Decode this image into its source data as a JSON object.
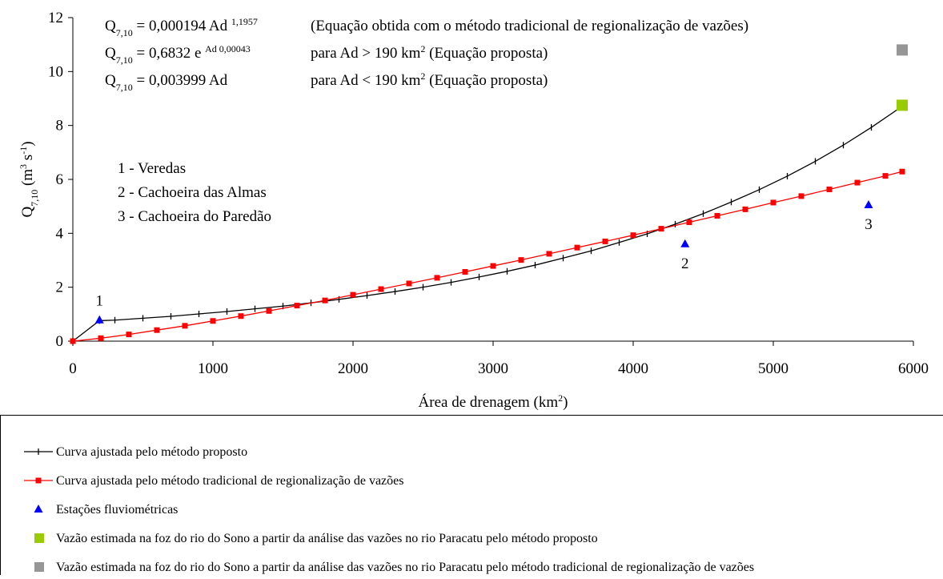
{
  "chart_data": {
    "type": "line",
    "xlabel": [
      {
        "text": "Área de drenagem (km"
      },
      {
        "text": "2",
        "sup": true
      },
      {
        "text": ")"
      }
    ],
    "ylabel": [
      {
        "text": "Q"
      },
      {
        "text": "7,10",
        "sub": true
      },
      {
        "text": " (m"
      },
      {
        "text": "3",
        "sup": true
      },
      {
        "text": " s"
      },
      {
        "text": "-1",
        "sup": true
      },
      {
        "text": ")"
      }
    ],
    "xlim": [
      0,
      6000
    ],
    "xticks": [
      0,
      1000,
      2000,
      3000,
      4000,
      5000,
      6000
    ],
    "ylim": [
      0,
      12
    ],
    "yticks": [
      0,
      2,
      4,
      6,
      8,
      10,
      12
    ],
    "grid": false,
    "equations": [
      {
        "formula": [
          {
            "text": "Q"
          },
          {
            "text": "7,10",
            "sub": true
          },
          {
            "text": " = 0,000194 Ad "
          },
          {
            "text": "1,1957",
            "sup": true
          }
        ],
        "note": [
          {
            "text": "(Equação obtida com o método tradicional de regionalização de vazões)"
          }
        ]
      },
      {
        "formula": [
          {
            "text": "Q"
          },
          {
            "text": "7,10",
            "sub": true
          },
          {
            "text": " = 0,6832 e "
          },
          {
            "text": "Ad 0,00043",
            "sup": true
          }
        ],
        "note": [
          {
            "text": "para Ad > 190 km"
          },
          {
            "text": "2",
            "sup": true
          },
          {
            "text": "  (Equação proposta)"
          }
        ]
      },
      {
        "formula": [
          {
            "text": "Q"
          },
          {
            "text": "7,10",
            "sub": true
          },
          {
            "text": " = 0,003999 Ad"
          }
        ],
        "note": [
          {
            "text": "para Ad < 190 km"
          },
          {
            "text": "2",
            "sup": true
          },
          {
            "text": "  (Equação proposta)"
          }
        ]
      }
    ],
    "stations": [
      "1 - Veredas",
      "2 - Cachoeira das Almas",
      "3 - Cachoeira do Paredão"
    ],
    "series": [
      {
        "name": "Curva ajustada pelo método proposto",
        "color": "#000000",
        "marker": "tick",
        "line": true,
        "x": [
          0,
          190,
          300,
          500,
          700,
          900,
          1100,
          1300,
          1500,
          1700,
          1900,
          2100,
          2300,
          2500,
          2700,
          2900,
          3100,
          3300,
          3500,
          3700,
          3900,
          4100,
          4300,
          4500,
          4700,
          4900,
          5100,
          5300,
          5500,
          5700,
          5920
        ],
        "values": [
          0,
          0.76,
          0.78,
          0.85,
          0.92,
          1.01,
          1.1,
          1.2,
          1.3,
          1.42,
          1.55,
          1.69,
          1.84,
          2.0,
          2.18,
          2.38,
          2.59,
          2.82,
          3.08,
          3.35,
          3.66,
          3.98,
          4.34,
          4.73,
          5.16,
          5.62,
          6.12,
          6.67,
          7.27,
          7.93,
          8.71
        ]
      },
      {
        "name": "Curva ajustada pelo método tradicional de regionalização de vazões",
        "color": "#ff0000",
        "marker": "square",
        "line": true,
        "x": [
          0,
          200,
          400,
          600,
          800,
          1000,
          1200,
          1400,
          1600,
          1800,
          2000,
          2200,
          2400,
          2600,
          2800,
          3000,
          3200,
          3400,
          3600,
          3800,
          4000,
          4200,
          4400,
          4600,
          4800,
          5000,
          5200,
          5400,
          5600,
          5800,
          5920
        ],
        "values": [
          0,
          0.11,
          0.25,
          0.41,
          0.57,
          0.75,
          0.93,
          1.12,
          1.32,
          1.51,
          1.72,
          1.93,
          2.14,
          2.35,
          2.57,
          2.79,
          3.01,
          3.24,
          3.47,
          3.7,
          3.93,
          4.17,
          4.41,
          4.65,
          4.89,
          5.14,
          5.38,
          5.63,
          5.88,
          6.13,
          6.29
        ]
      },
      {
        "name": "Estações fluviométricas",
        "color": "#0000ff",
        "marker": "triangle",
        "line": false,
        "x": [
          190,
          4370,
          5680
        ],
        "values": [
          0.78,
          3.6,
          5.05
        ],
        "point_labels": [
          "1",
          "2",
          "3"
        ]
      },
      {
        "name": "Vazão estimada na foz do rio do Sono a partir da análise das vazões no rio Paracatu pelo método proposto",
        "color": "#99cc00",
        "marker": "bigsquare",
        "line": false,
        "x": [
          5920
        ],
        "values": [
          8.75
        ]
      },
      {
        "name": "Vazão estimada na foz do rio do Sono a partir da análise das vazões no rio Paracatu pelo método tradicional de regionalização de vazões",
        "color": "#969696",
        "marker": "bigsquare",
        "line": false,
        "x": [
          5920
        ],
        "values": [
          10.8
        ]
      }
    ]
  }
}
